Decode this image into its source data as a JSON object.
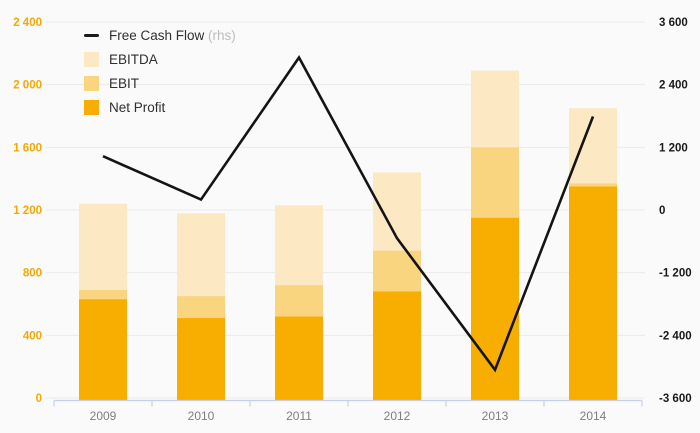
{
  "chart_data": {
    "type": "combo-bar-line",
    "bar_mode": "overlay",
    "categories": [
      "2009",
      "2010",
      "2011",
      "2012",
      "2013",
      "2014"
    ],
    "series": [
      {
        "name": "EBITDA",
        "type": "bar",
        "axis": "left",
        "color": "#FCE9C4",
        "values": [
          1240,
          1180,
          1230,
          1440,
          2090,
          1850
        ]
      },
      {
        "name": "EBIT",
        "type": "bar",
        "axis": "left",
        "color": "#FAD57F",
        "values": [
          690,
          650,
          720,
          940,
          1600,
          1370
        ]
      },
      {
        "name": "Net Profit",
        "type": "bar",
        "axis": "left",
        "color": "#F7AE00",
        "values": [
          630,
          510,
          520,
          680,
          1150,
          1350
        ]
      },
      {
        "name": "Free Cash Flow",
        "type": "line",
        "axis": "right",
        "color": "#141414",
        "values": [
          1030,
          200,
          2920,
          -540,
          -3060,
          1790
        ]
      }
    ],
    "left_axis": {
      "min": 0,
      "max": 2400,
      "step": 400,
      "tick_values": [
        0,
        400,
        800,
        1200,
        1600,
        2000,
        2400
      ],
      "tick_labels": [
        "0",
        "400",
        "800",
        "1 200",
        "1 600",
        "2 000",
        "2 400"
      ],
      "label_color": "#F5A800"
    },
    "right_axis": {
      "min": -3600,
      "max": 3600,
      "step": 1200,
      "tick_values": [
        -3600,
        -2400,
        -1200,
        0,
        1200,
        2400,
        3600
      ],
      "tick_labels": [
        "-3 600",
        "-2 400",
        "-1 200",
        "0",
        "1 200",
        "2 400",
        "3 600"
      ],
      "label_color": "#1A1A1A"
    },
    "legend": [
      {
        "label": "Free Cash Flow",
        "note": " (rhs)",
        "swatch": "line",
        "color": "#1A1A1A"
      },
      {
        "label": "EBITDA",
        "note": "",
        "swatch": "square",
        "color": "#FCE9C4"
      },
      {
        "label": "EBIT",
        "note": "",
        "swatch": "square",
        "color": "#FAD57F"
      },
      {
        "label": "Net Profit",
        "note": "",
        "swatch": "square",
        "color": "#F7AE00"
      }
    ],
    "grid": true,
    "grid_color": "#EBEBEB",
    "axis_line_color": "#C5D0E6",
    "background": "#FAFAFA",
    "title": "",
    "xlabel": "",
    "ylabel": ""
  }
}
